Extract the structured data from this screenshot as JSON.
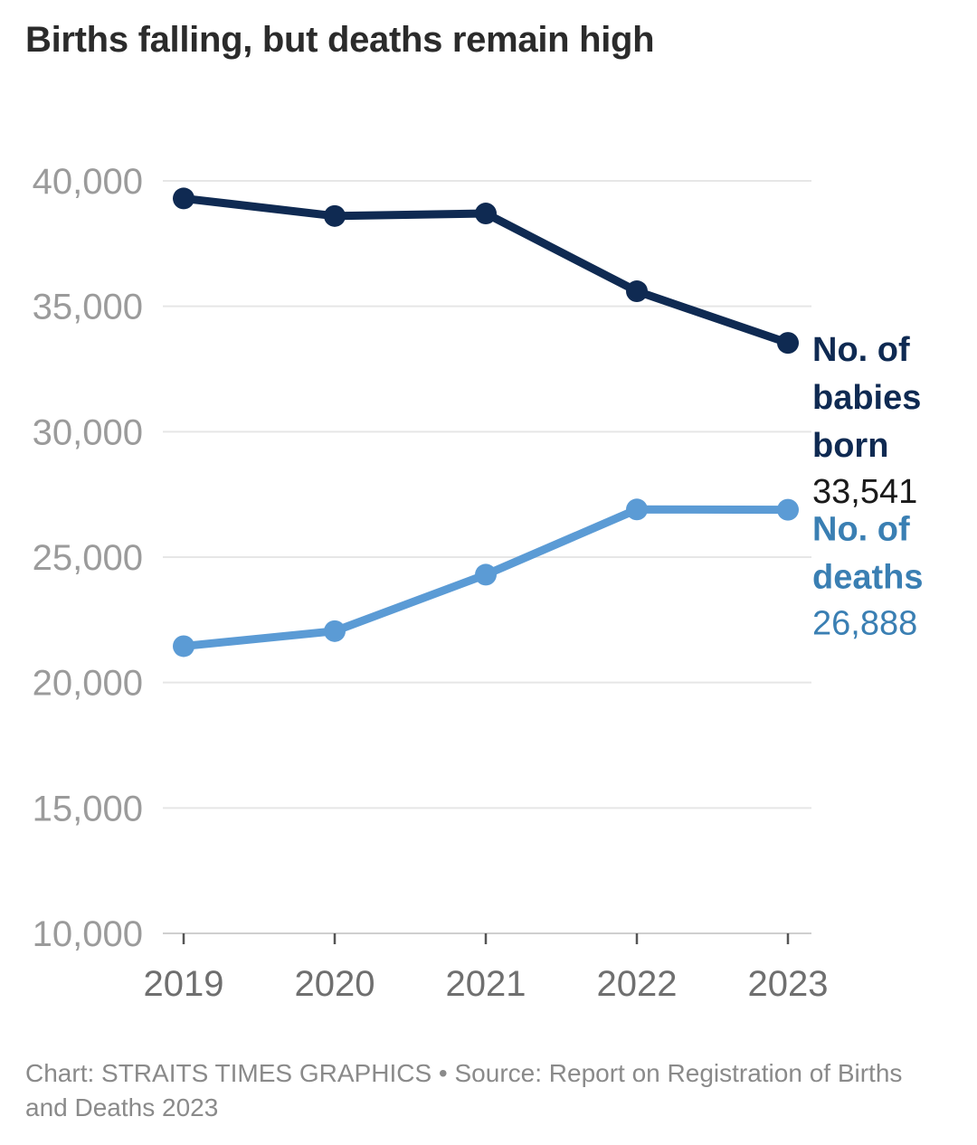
{
  "title": "Births falling, but deaths remain high",
  "footer": {
    "credit": "Chart: STRAITS TIMES GRAPHICS",
    "separator": " • ",
    "source": "Source: Report on Registration of Births and Deaths 2023"
  },
  "chart_data": {
    "type": "line",
    "x": [
      "2019",
      "2020",
      "2021",
      "2022",
      "2023"
    ],
    "ylim": [
      10000,
      40000
    ],
    "yticks": [
      10000,
      15000,
      20000,
      25000,
      30000,
      35000,
      40000
    ],
    "ytick_labels": [
      "10,000",
      "15,000",
      "20,000",
      "25,000",
      "30,000",
      "35,000",
      "40,000"
    ],
    "grid": true,
    "series": [
      {
        "name": "No. of babies born",
        "name_lines": [
          "No. of",
          "babies",
          "born"
        ],
        "values": [
          39300,
          38600,
          38700,
          35600,
          33541
        ],
        "end_label": "33,541",
        "color": "#0f2a52",
        "value_color": "#1a1a1a"
      },
      {
        "name": "No. of deaths",
        "name_lines": [
          "No. of",
          "deaths"
        ],
        "values": [
          21450,
          22050,
          24300,
          26900,
          26888
        ],
        "end_label": "26,888",
        "color": "#5b9bd5",
        "label_color": "#3a7fb3",
        "value_color": "#3a7fb3"
      }
    ]
  }
}
